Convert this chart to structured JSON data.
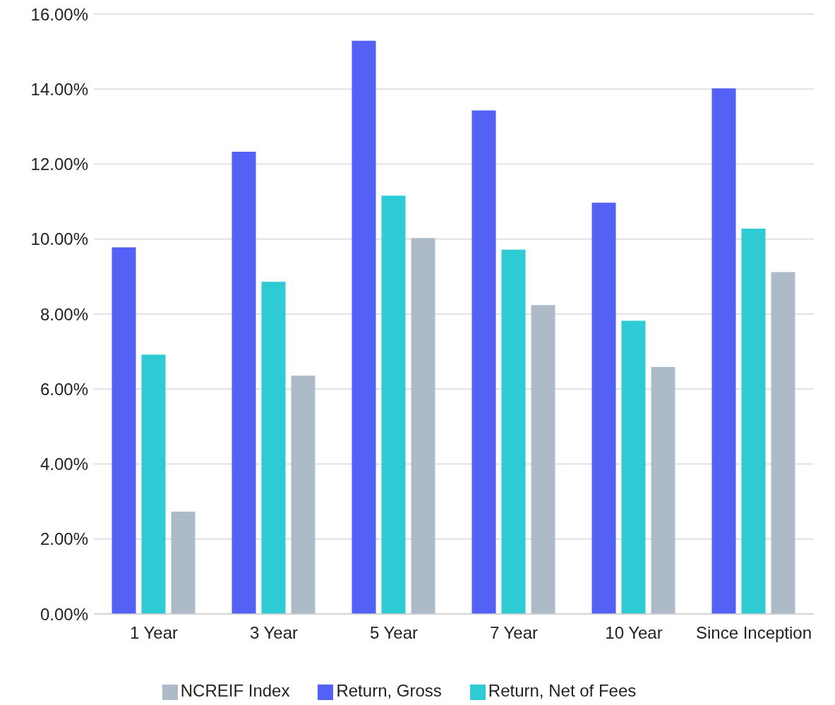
{
  "chart_data": {
    "type": "bar",
    "categories": [
      "1 Year",
      "3 Year",
      "5 Year",
      "7 Year",
      "10 Year",
      "Since Inception"
    ],
    "series": [
      {
        "name": "Return, Gross",
        "color": "#5361f5",
        "values": [
          9.78,
          12.33,
          15.29,
          13.43,
          10.97,
          14.02
        ]
      },
      {
        "name": "Return, Net of Fees",
        "color": "#2ecbd4",
        "values": [
          6.92,
          8.86,
          11.16,
          9.72,
          7.82,
          10.28
        ]
      },
      {
        "name": "NCREIF Index",
        "color": "#adbbc8",
        "values": [
          2.73,
          6.36,
          10.03,
          8.24,
          6.59,
          9.12
        ]
      }
    ],
    "ylim": [
      0,
      16
    ],
    "yticks": [
      {
        "value": 0,
        "label": "0.00%"
      },
      {
        "value": 2,
        "label": "2.00%"
      },
      {
        "value": 4,
        "label": "4.00%"
      },
      {
        "value": 6,
        "label": "6.00%"
      },
      {
        "value": 8,
        "label": "8.00%"
      },
      {
        "value": 10,
        "label": "10.00%"
      },
      {
        "value": 12,
        "label": "12.00%"
      },
      {
        "value": 14,
        "label": "14.00%"
      },
      {
        "value": 16,
        "label": "16.00%"
      }
    ],
    "grid": "y",
    "legend": "bottom"
  }
}
